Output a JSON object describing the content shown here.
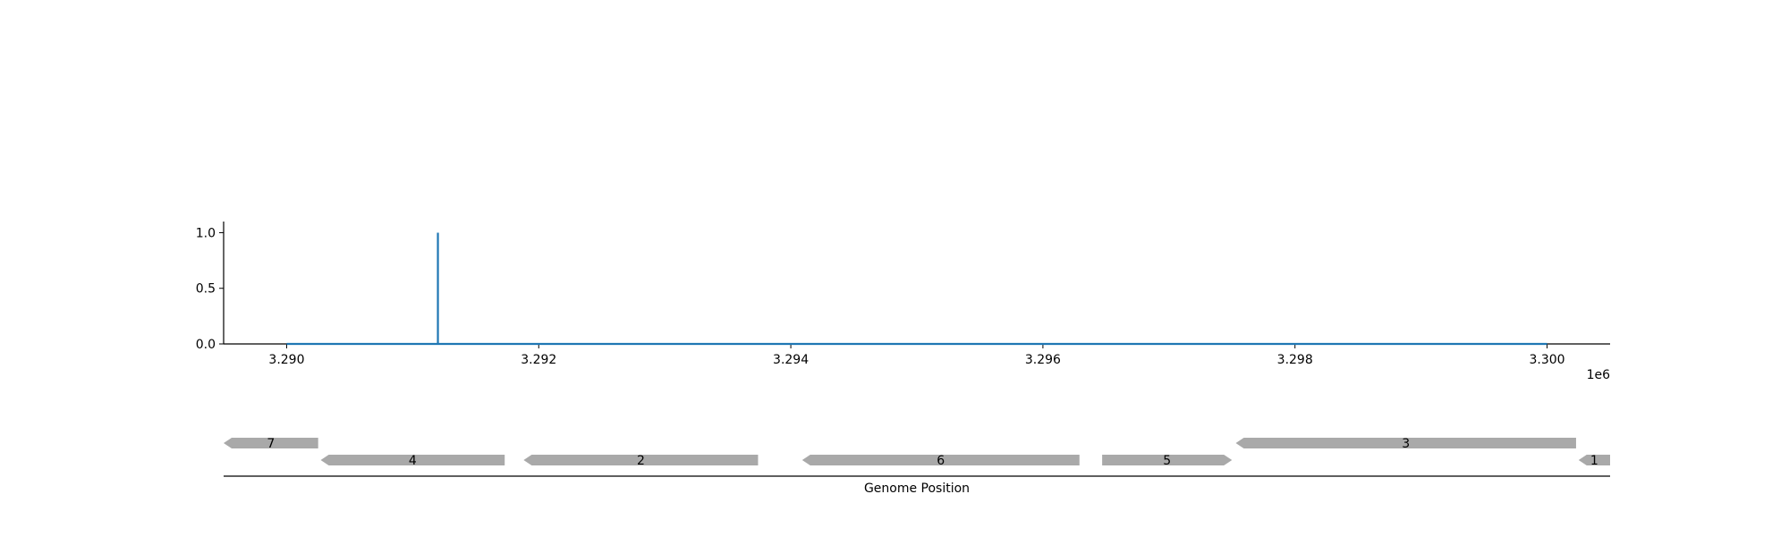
{
  "chart_data": [
    {
      "type": "line",
      "title": "",
      "xlabel": "",
      "ylabel": "",
      "x_offset_label": "1e6",
      "xlim": [
        3289500,
        3300500
      ],
      "ylim": [
        0,
        1.1
      ],
      "x_ticks": [
        3290000,
        3292000,
        3294000,
        3296000,
        3298000,
        3300000
      ],
      "x_tick_labels": [
        "3.290",
        "3.292",
        "3.294",
        "3.296",
        "3.298",
        "3.300"
      ],
      "y_ticks": [
        0.0,
        0.5,
        1.0
      ],
      "y_tick_labels": [
        "0.0",
        "0.5",
        "1.0"
      ],
      "grid": false,
      "series": [
        {
          "color": "#1f77b4",
          "points": [
            [
              3290000,
              0
            ],
            [
              3291200,
              0
            ],
            [
              3291200,
              1.0
            ],
            [
              3291200,
              0
            ],
            [
              3300000,
              0
            ]
          ]
        }
      ]
    },
    {
      "type": "gene-track",
      "xlabel": "Genome Position",
      "xlim": [
        3289500,
        3300500
      ],
      "feature_color": "#a9a9a9",
      "features": [
        {
          "label": "7",
          "start": 3289500,
          "end": 3290250,
          "strand": -1,
          "row": 0
        },
        {
          "label": "4",
          "start": 3290270,
          "end": 3291730,
          "strand": -1,
          "row": 1
        },
        {
          "label": "2",
          "start": 3291880,
          "end": 3293740,
          "strand": -1,
          "row": 1
        },
        {
          "label": "6",
          "start": 3294090,
          "end": 3296290,
          "strand": -1,
          "row": 1
        },
        {
          "label": "5",
          "start": 3296470,
          "end": 3297500,
          "strand": 1,
          "row": 1
        },
        {
          "label": "3",
          "start": 3297530,
          "end": 3300230,
          "strand": -1,
          "row": 0
        },
        {
          "label": "1",
          "start": 3300250,
          "end": 3300500,
          "strand": -1,
          "row": 1
        }
      ]
    }
  ]
}
